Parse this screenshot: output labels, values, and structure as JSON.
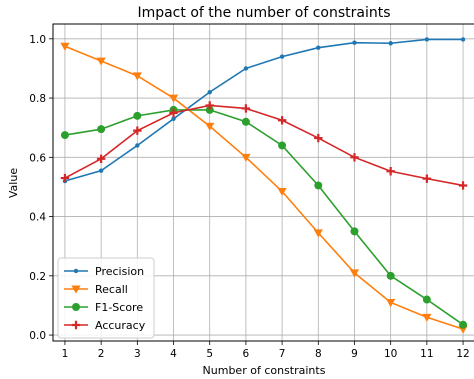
{
  "chart_data": {
    "type": "line",
    "title": "Impact of the number of constraints",
    "xlabel": "Number of constraints",
    "ylabel": "Value",
    "x": [
      1,
      2,
      3,
      4,
      5,
      6,
      7,
      8,
      9,
      10,
      11,
      12
    ],
    "xlim": [
      0.67,
      12.33
    ],
    "ylim": [
      -0.02,
      1.05
    ],
    "yticks": [
      "0.0",
      "0.2",
      "0.4",
      "0.6",
      "0.8",
      "1.0"
    ],
    "ytick_values": [
      0,
      0.2,
      0.4,
      0.6,
      0.8,
      1.0
    ],
    "xticks": [
      "1",
      "2",
      "3",
      "4",
      "5",
      "6",
      "7",
      "8",
      "9",
      "10",
      "11",
      "12"
    ],
    "grid": true,
    "legend_position": "lower left",
    "series": [
      {
        "name": "Precision",
        "color": "#1f77b4",
        "marker": "point",
        "values": [
          0.52,
          0.555,
          0.64,
          0.73,
          0.82,
          0.9,
          0.94,
          0.97,
          0.987,
          0.985,
          0.998,
          0.998
        ]
      },
      {
        "name": "Recall",
        "color": "#ff7f0e",
        "marker": "triangle-down",
        "values": [
          0.975,
          0.925,
          0.875,
          0.8,
          0.705,
          0.6,
          0.485,
          0.345,
          0.21,
          0.11,
          0.06,
          0.02
        ]
      },
      {
        "name": "F1-Score",
        "color": "#2ca02c",
        "marker": "circle",
        "values": [
          0.675,
          0.695,
          0.74,
          0.76,
          0.76,
          0.72,
          0.64,
          0.505,
          0.35,
          0.2,
          0.12,
          0.035
        ]
      },
      {
        "name": "Accuracy",
        "color": "#d62728",
        "marker": "plus",
        "values": [
          0.53,
          0.595,
          0.69,
          0.75,
          0.775,
          0.765,
          0.725,
          0.665,
          0.6,
          0.553,
          0.528,
          0.505
        ]
      }
    ]
  }
}
